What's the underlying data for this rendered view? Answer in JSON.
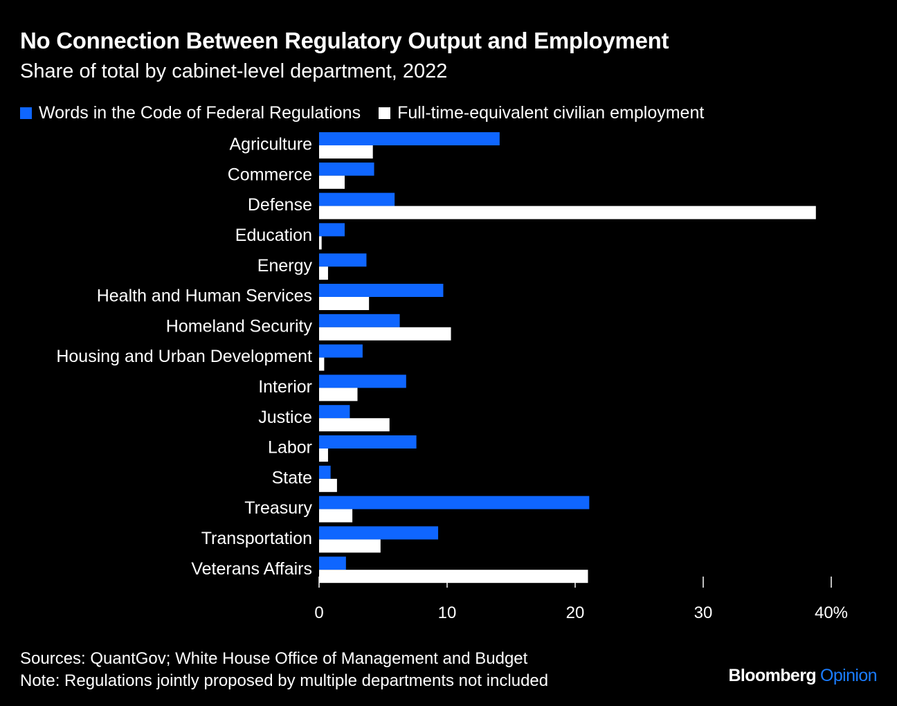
{
  "chart_data": {
    "type": "bar",
    "orientation": "horizontal",
    "title": "No Connection Between Regulatory Output and Employment",
    "subtitle": "Share of total by cabinet-level department, 2022",
    "categories": [
      "Agriculture",
      "Commerce",
      "Defense",
      "Education",
      "Energy",
      "Health and Human Services",
      "Homeland Security",
      "Housing and Urban Development",
      "Interior",
      "Justice",
      "Labor",
      "State",
      "Treasury",
      "Transportation",
      "Veterans Affairs"
    ],
    "series": [
      {
        "name": "Words in the Code of Federal Regulations",
        "color": "#0f66ff",
        "values": [
          14.1,
          4.3,
          5.9,
          2.0,
          3.7,
          9.7,
          6.3,
          3.4,
          6.8,
          2.4,
          7.6,
          0.9,
          21.1,
          9.3,
          2.1
        ]
      },
      {
        "name": "Full-time-equivalent civilian employment",
        "color": "#ffffff",
        "values": [
          4.2,
          2.0,
          38.8,
          0.2,
          0.7,
          3.9,
          10.3,
          0.4,
          3.0,
          5.5,
          0.7,
          1.4,
          2.6,
          4.8,
          21.0
        ]
      }
    ],
    "xlim": [
      0,
      40
    ],
    "xticks": [
      0,
      10,
      20,
      30,
      40
    ],
    "xtick_labels": [
      "0",
      "10",
      "20",
      "30",
      "40%"
    ],
    "legend_position": "top-left",
    "grid": false
  },
  "footer": {
    "sources": "Sources: QuantGov; White House Office of Management and Budget",
    "note": "Note: Regulations jointly proposed by multiple departments not included"
  },
  "brand": {
    "name": "Bloomberg",
    "section": "Opinion"
  },
  "colors": {
    "background": "#000000",
    "accent": "#0f66ff",
    "brand_accent": "#1a7cff"
  }
}
